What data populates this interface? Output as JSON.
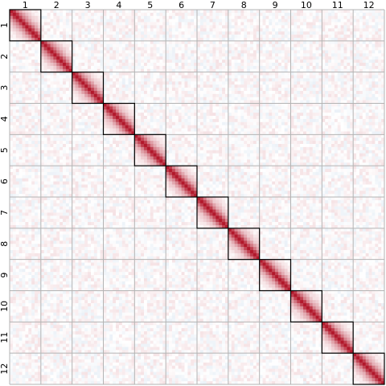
{
  "chart_data": {
    "type": "heatmap",
    "title": "",
    "xlabel": "",
    "ylabel": "",
    "x_ticks": [
      "1",
      "2",
      "3",
      "4",
      "5",
      "6",
      "7",
      "8",
      "9",
      "10",
      "11",
      "12"
    ],
    "y_ticks": [
      "1",
      "2",
      "3",
      "4",
      "5",
      "6",
      "7",
      "8",
      "9",
      "10",
      "11",
      "12"
    ],
    "groups": 12,
    "cells_per_group": 10,
    "value_range": [
      -1,
      1
    ],
    "diagonal_value": 1.0,
    "within_group_correlation": "high, decaying with distance from the diagonal",
    "between_group_correlation": "near zero noise",
    "colors": {
      "positive": "#b2182b",
      "negative": "#2166ac",
      "neutral": "#ffffff",
      "block_border": "#000000",
      "grid": "#b4b4b4"
    },
    "grid": true,
    "highlight_diagonal_blocks": true
  }
}
